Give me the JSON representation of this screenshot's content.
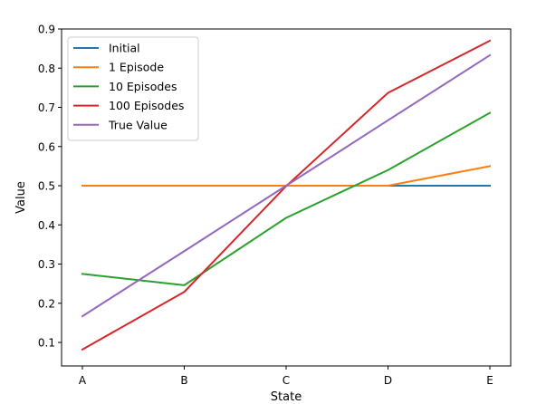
{
  "chart_data": {
    "type": "line",
    "xlabel": "State",
    "ylabel": "Value",
    "categories": [
      "A",
      "B",
      "C",
      "D",
      "E"
    ],
    "ylim": [
      0.04,
      0.9
    ],
    "yticks": [
      0.1,
      0.2,
      0.3,
      0.4,
      0.5,
      0.6,
      0.7,
      0.8,
      0.9
    ],
    "grid": false,
    "legend_position": "top-left",
    "series": [
      {
        "name": "Initial",
        "color": "#1f77b4",
        "values": [
          0.5,
          0.5,
          0.5,
          0.5,
          0.5
        ]
      },
      {
        "name": "1 Episode",
        "color": "#ff7f0e",
        "values": [
          0.5,
          0.5,
          0.5,
          0.5,
          0.55
        ]
      },
      {
        "name": "10 Episodes",
        "color": "#2ca02c",
        "values": [
          0.275,
          0.246,
          0.418,
          0.54,
          0.686
        ]
      },
      {
        "name": "100 Episodes",
        "color": "#d62728",
        "values": [
          0.082,
          0.229,
          0.499,
          0.737,
          0.87
        ]
      },
      {
        "name": "True Value",
        "color": "#9467bd",
        "values": [
          0.167,
          0.333,
          0.5,
          0.667,
          0.833
        ]
      }
    ]
  }
}
